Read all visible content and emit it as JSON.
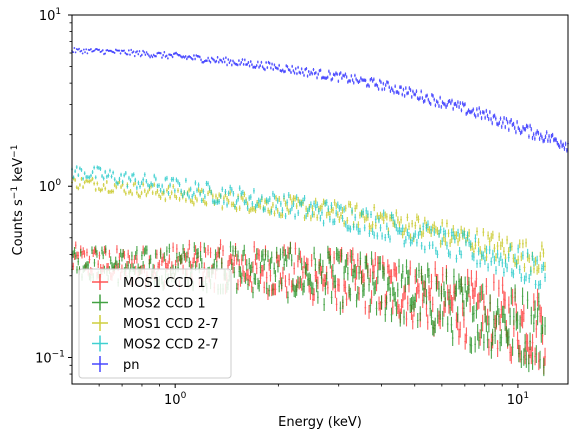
{
  "chart_data": {
    "type": "scatter",
    "xscale": "log",
    "yscale": "log",
    "xlabel": "Energy (keV)",
    "ylabel_main": "Counts s",
    "ylabel_sup1": "−1",
    "ylabel_mid": " keV",
    "ylabel_sup2": "−1",
    "xlim": [
      0.5,
      14
    ],
    "ylim": [
      0.07,
      10
    ],
    "x_ticks": [
      {
        "value": 1,
        "base": "10",
        "exp": "0"
      },
      {
        "value": 10,
        "base": "10",
        "exp": "1"
      }
    ],
    "y_ticks": [
      {
        "value": 0.1,
        "base": "10",
        "exp": "−1"
      },
      {
        "value": 1,
        "base": "10",
        "exp": "0"
      },
      {
        "value": 10,
        "base": "10",
        "exp": "1"
      }
    ],
    "grid": false,
    "legend_position": "lower-left",
    "series": [
      {
        "name": "MOS1 CCD 1",
        "color": "#ff2b2b",
        "x": [
          0.5,
          0.6,
          0.7,
          0.8,
          1.0,
          1.2,
          1.5,
          2.0,
          2.5,
          3.0,
          4.0,
          5.0,
          6.0,
          8.0,
          10.0,
          12.0
        ],
        "y": [
          0.37,
          0.355,
          0.34,
          0.34,
          0.345,
          0.345,
          0.335,
          0.32,
          0.305,
          0.285,
          0.26,
          0.235,
          0.21,
          0.18,
          0.158,
          0.145
        ]
      },
      {
        "name": "MOS2 CCD 1",
        "color": "#138a13",
        "x": [
          0.5,
          0.6,
          0.7,
          0.8,
          1.0,
          1.2,
          1.5,
          2.0,
          2.5,
          3.0,
          4.0,
          5.0,
          6.0,
          8.0,
          10.0,
          12.0
        ],
        "y": [
          0.37,
          0.35,
          0.34,
          0.335,
          0.34,
          0.34,
          0.33,
          0.315,
          0.3,
          0.28,
          0.255,
          0.23,
          0.205,
          0.175,
          0.155,
          0.14
        ]
      },
      {
        "name": "MOS1 CCD 2-7",
        "color": "#c2c20e",
        "x": [
          0.5,
          0.6,
          0.7,
          0.8,
          1.0,
          1.2,
          1.5,
          2.0,
          2.5,
          3.0,
          4.0,
          5.0,
          6.0,
          8.0,
          10.0,
          12.0
        ],
        "y": [
          1.05,
          1.03,
          0.99,
          0.95,
          0.9,
          0.86,
          0.82,
          0.77,
          0.73,
          0.7,
          0.64,
          0.58,
          0.53,
          0.46,
          0.41,
          0.37
        ]
      },
      {
        "name": "MOS2 CCD 2-7",
        "color": "#10c4c4",
        "x": [
          0.5,
          0.6,
          0.7,
          0.8,
          1.0,
          1.2,
          1.5,
          2.0,
          2.5,
          3.0,
          4.0,
          5.0,
          6.0,
          8.0,
          10.0,
          12.0
        ],
        "y": [
          1.22,
          1.17,
          1.11,
          1.06,
          0.99,
          0.93,
          0.87,
          0.79,
          0.73,
          0.68,
          0.6,
          0.53,
          0.47,
          0.4,
          0.35,
          0.31
        ]
      },
      {
        "name": "pn",
        "color": "#1a1aff",
        "x": [
          0.5,
          0.6,
          0.7,
          0.8,
          1.0,
          1.2,
          1.5,
          2.0,
          2.5,
          3.0,
          4.0,
          5.0,
          6.0,
          8.0,
          10.0,
          12.0,
          14.0
        ],
        "y": [
          6.2,
          6.15,
          6.05,
          5.95,
          5.75,
          5.55,
          5.3,
          4.95,
          4.6,
          4.35,
          3.9,
          3.45,
          3.1,
          2.6,
          2.2,
          1.95,
          1.75
        ]
      }
    ]
  }
}
